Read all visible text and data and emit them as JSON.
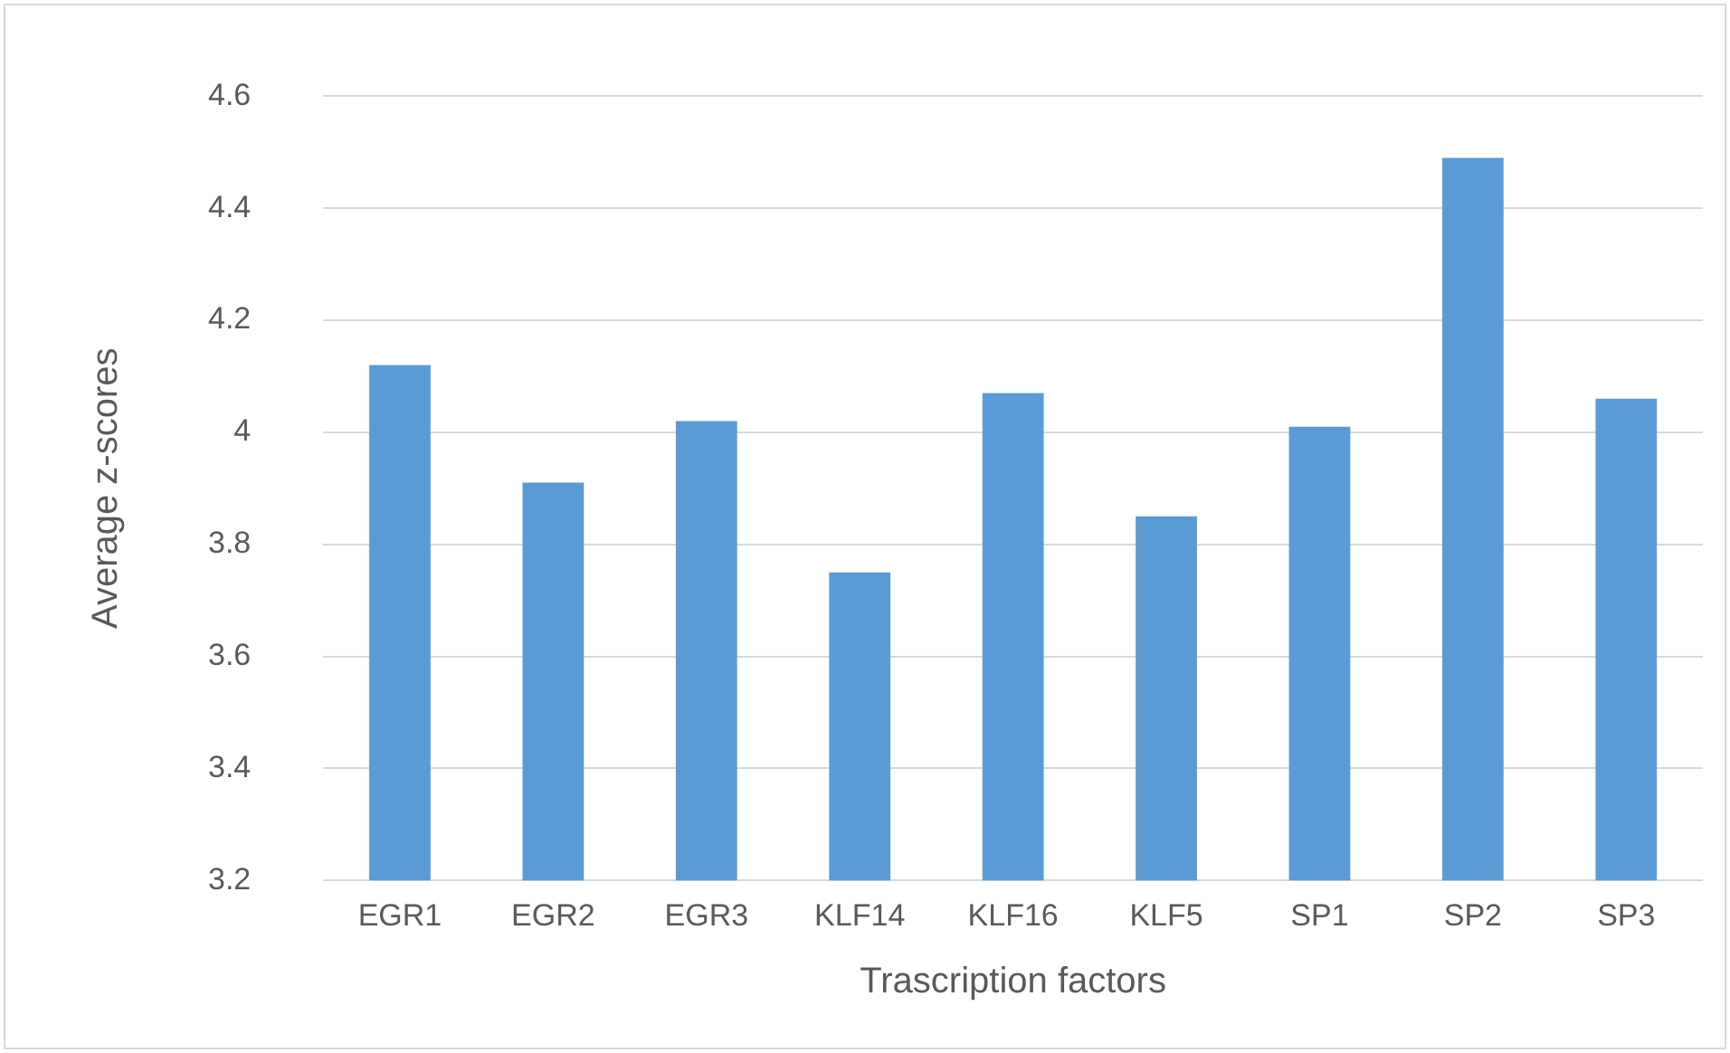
{
  "chart_data": {
    "type": "bar",
    "xlabel": "Trascription factors",
    "ylabel": "Average z-scores",
    "categories": [
      "EGR1",
      "EGR2",
      "EGR3",
      "KLF14",
      "KLF16",
      "KLF5",
      "SP1",
      "SP2",
      "SP3"
    ],
    "values": [
      4.12,
      3.91,
      4.02,
      3.75,
      4.07,
      3.85,
      4.01,
      4.49,
      4.06
    ],
    "color": "#5b9bd5",
    "ylim": [
      3.2,
      4.6
    ],
    "yticks": [
      {
        "value": 3.2,
        "label": "3.2"
      },
      {
        "value": 3.4,
        "label": "3.4"
      },
      {
        "value": 3.6,
        "label": "3.6"
      },
      {
        "value": 3.8,
        "label": "3.8"
      },
      {
        "value": 4,
        "label": "4"
      },
      {
        "value": 4.2,
        "label": "4.2"
      },
      {
        "value": 4.4,
        "label": "4.4"
      },
      {
        "value": 4.6,
        "label": "4.6"
      }
    ],
    "grid": "y"
  }
}
